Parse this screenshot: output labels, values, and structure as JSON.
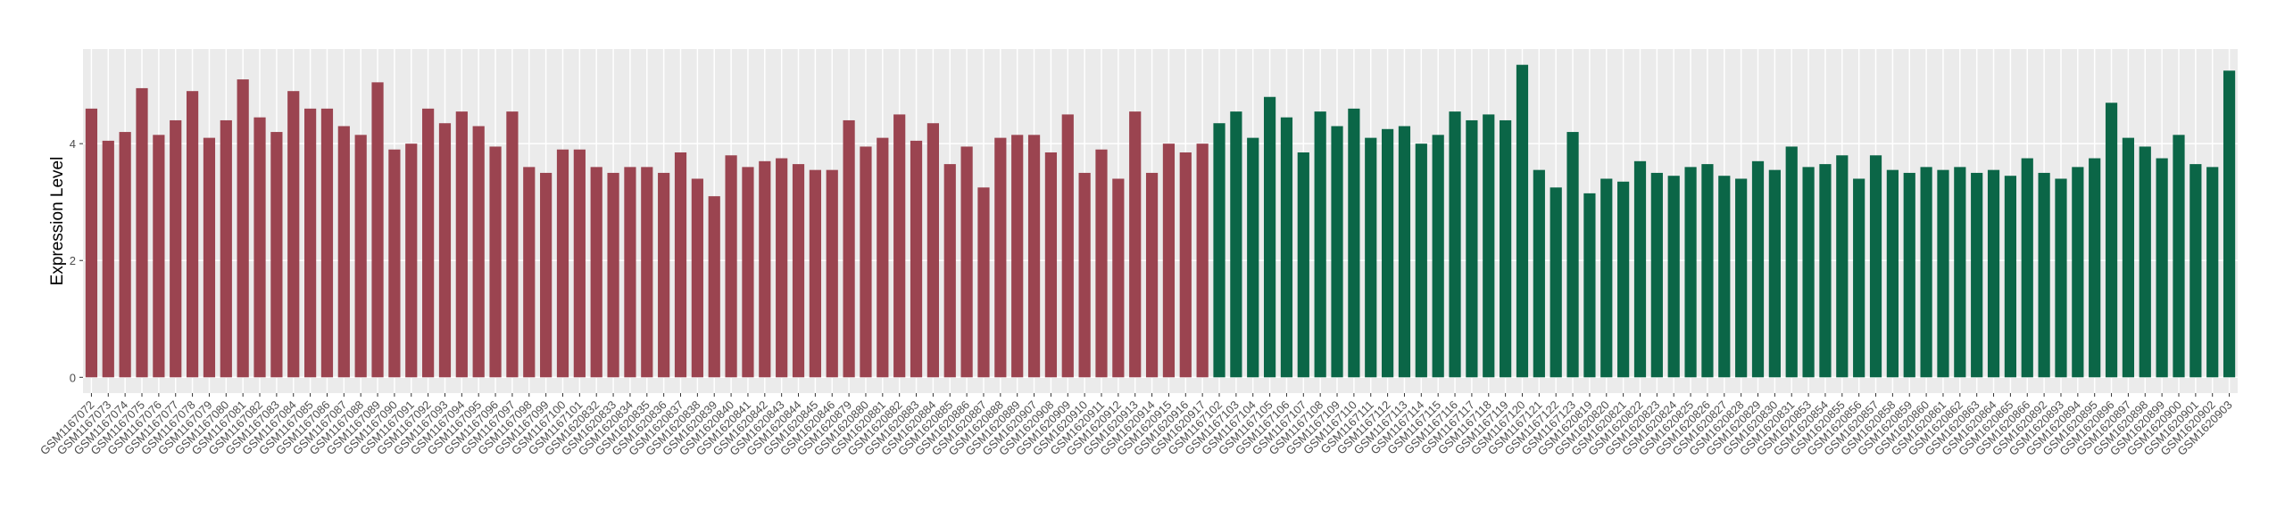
{
  "chart_data": {
    "type": "bar",
    "y_label": "Expression Level",
    "ylim": [
      -0.27,
      5.62
    ],
    "yticks": [
      0,
      2,
      4
    ],
    "grid": true,
    "groups": [
      {
        "color": "#9b4450",
        "categories": [
          "GSM1167072",
          "GSM1167073",
          "GSM1167074",
          "GSM1167075",
          "GSM1167076",
          "GSM1167077",
          "GSM1167078",
          "GSM1167079",
          "GSM1167080",
          "GSM1167081",
          "GSM1167082",
          "GSM1167083",
          "GSM1167084",
          "GSM1167085",
          "GSM1167086",
          "GSM1167087",
          "GSM1167088",
          "GSM1167089",
          "GSM1167090",
          "GSM1167091",
          "GSM1167092",
          "GSM1167093",
          "GSM1167094",
          "GSM1167095",
          "GSM1167096",
          "GSM1167097",
          "GSM1167098",
          "GSM1167099",
          "GSM1167100",
          "GSM1167101",
          "GSM1620832",
          "GSM1620833",
          "GSM1620834",
          "GSM1620835",
          "GSM1620836",
          "GSM1620837",
          "GSM1620838",
          "GSM1620839",
          "GSM1620840",
          "GSM1620841",
          "GSM1620842",
          "GSM1620843",
          "GSM1620844",
          "GSM1620845",
          "GSM1620846",
          "GSM1620879",
          "GSM1620880",
          "GSM1620881",
          "GSM1620882",
          "GSM1620883",
          "GSM1620884",
          "GSM1620885",
          "GSM1620886",
          "GSM1620887",
          "GSM1620888",
          "GSM1620889",
          "GSM1620907",
          "GSM1620908",
          "GSM1620909",
          "GSM1620910",
          "GSM1620911",
          "GSM1620912",
          "GSM1620913",
          "GSM1620914",
          "GSM1620915",
          "GSM1620916",
          "GSM1620917"
        ],
        "values": [
          4.6,
          4.05,
          4.2,
          4.95,
          4.15,
          4.4,
          4.9,
          4.1,
          4.4,
          5.1,
          4.45,
          4.2,
          4.9,
          4.6,
          4.6,
          4.3,
          4.15,
          5.05,
          3.9,
          4.0,
          4.6,
          4.35,
          4.55,
          4.3,
          3.95,
          4.55,
          3.6,
          3.5,
          3.9,
          3.9,
          3.6,
          3.5,
          3.6,
          3.6,
          3.5,
          3.85,
          3.4,
          3.1,
          3.8,
          3.6,
          3.7,
          3.75,
          3.65,
          3.55,
          3.55,
          4.4,
          3.95,
          4.1,
          4.5,
          4.05,
          4.35,
          3.65,
          3.95,
          3.25,
          4.1,
          4.15,
          4.15,
          3.85,
          4.5,
          3.5,
          3.9,
          3.4,
          4.55,
          3.5,
          4.0,
          3.85,
          4.0
        ]
      },
      {
        "color": "#0b6647",
        "categories": [
          "GSM1167102",
          "GSM1167103",
          "GSM1167104",
          "GSM1167105",
          "GSM1167106",
          "GSM1167107",
          "GSM1167108",
          "GSM1167109",
          "GSM1167110",
          "GSM1167111",
          "GSM1167112",
          "GSM1167113",
          "GSM1167114",
          "GSM1167115",
          "GSM1167116",
          "GSM1167117",
          "GSM1167118",
          "GSM1167119",
          "GSM1167120",
          "GSM1167121",
          "GSM1167122",
          "GSM1167123",
          "GSM1620819",
          "GSM1620820",
          "GSM1620821",
          "GSM1620822",
          "GSM1620823",
          "GSM1620824",
          "GSM1620825",
          "GSM1620826",
          "GSM1620827",
          "GSM1620828",
          "GSM1620829",
          "GSM1620830",
          "GSM1620831",
          "GSM1620853",
          "GSM1620854",
          "GSM1620855",
          "GSM1620856",
          "GSM1620857",
          "GSM1620858",
          "GSM1620859",
          "GSM1620860",
          "GSM1620861",
          "GSM1620862",
          "GSM1620863",
          "GSM1620864",
          "GSM1620865",
          "GSM1620866",
          "GSM1620892",
          "GSM1620893",
          "GSM1620894",
          "GSM1620895",
          "GSM1620896",
          "GSM1620897",
          "GSM1620898",
          "GSM1620899",
          "GSM1620900",
          "GSM1620901",
          "GSM1620902",
          "GSM1620903"
        ],
        "values": [
          4.35,
          4.55,
          4.1,
          4.8,
          4.45,
          3.85,
          4.55,
          4.3,
          4.6,
          4.1,
          4.25,
          4.3,
          4.0,
          4.15,
          4.55,
          4.4,
          4.5,
          4.4,
          5.35,
          3.55,
          3.25,
          4.2,
          3.15,
          3.4,
          3.35,
          3.7,
          3.5,
          3.45,
          3.6,
          3.65,
          3.45,
          3.4,
          3.7,
          3.55,
          3.95,
          3.6,
          3.65,
          3.8,
          3.4,
          3.8,
          3.55,
          3.5,
          3.6,
          3.55,
          3.6,
          3.5,
          3.55,
          3.45,
          3.75,
          3.5,
          3.4,
          3.6,
          3.75,
          4.7,
          4.1,
          3.95,
          3.75,
          4.15,
          3.65,
          3.6,
          5.25
        ]
      }
    ]
  }
}
